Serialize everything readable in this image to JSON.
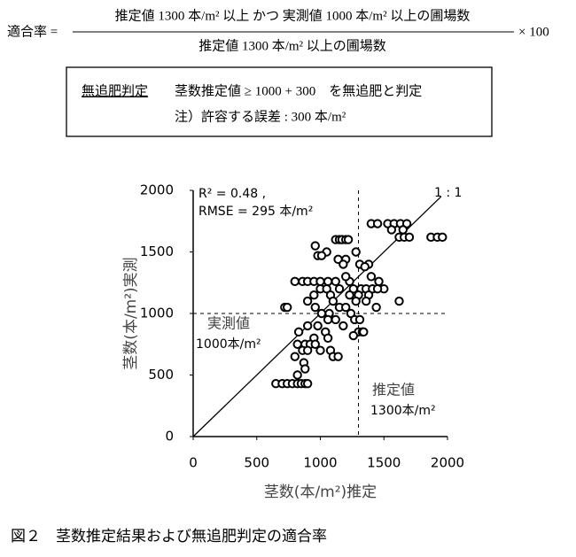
{
  "formula": {
    "lhs": "適合率 =",
    "numerator": "推定値 1300 本/m² 以上 かつ 実測値 1000 本/m² 以上の圃場数",
    "denominator": "推定値 1300 本/m² 以上の圃場数",
    "multiplier": "× 100"
  },
  "criteria": {
    "label": "無追肥判定",
    "rule": "茎数推定値 ≥ 1000 + 300　を無追肥と判定",
    "note": "注）許容する誤差 : 300 本/m²"
  },
  "chart_data": {
    "type": "scatter",
    "x_label": "茎数(本/m²)推定",
    "y_label": "茎数(本/m²)実測",
    "annotations": {
      "r2": "R² = 0.48 ,",
      "rmse": "RMSE = 295 本/m²",
      "identity": "1 : 1",
      "y_threshold_label": "実測値",
      "y_threshold_value": "1000本/m²",
      "x_threshold_label": "推定値",
      "x_threshold_value": "1300本/m²"
    },
    "x_threshold": 1300,
    "y_threshold": 1000,
    "xlim": [
      0,
      2000
    ],
    "ylim": [
      0,
      2000
    ],
    "xticks": [
      0,
      500,
      1000,
      1500,
      2000
    ],
    "yticks": [
      0,
      500,
      1000,
      1500,
      2000
    ],
    "marker_color": "#000000",
    "x": [
      1400,
      1450,
      1530,
      1580,
      1630,
      1680,
      1620,
      1660,
      1700,
      1870,
      1920,
      1960,
      1560,
      1650,
      1120,
      1150,
      1170,
      1200,
      1220,
      960,
      1050,
      1280,
      980,
      1010,
      1200,
      1140,
      1180,
      1380,
      1310,
      1350,
      800,
      860,
      900,
      950,
      1000,
      1060,
      1120,
      1230,
      1460,
      1400,
      1200,
      1000,
      1050,
      1150,
      1260,
      1320,
      1360,
      1500,
      1410,
      1450,
      950,
      1080,
      1230,
      1300,
      1380,
      900,
      1100,
      1280,
      1360,
      1620,
      720,
      740,
      960,
      1150,
      1200,
      1440,
      1010,
      1070,
      1240,
      1060,
      1120,
      1270,
      1310,
      900,
      980,
      1180,
      830,
      1040,
      1300,
      1330,
      1340,
      1260,
      950,
      1060,
      820,
      880,
      920,
      960,
      860,
      900,
      1000,
      1080,
      800,
      1100,
      1140,
      870,
      880,
      820,
      650,
      700,
      740,
      780,
      820,
      850,
      880,
      900
    ],
    "values": [
      1730,
      1730,
      1730,
      1730,
      1730,
      1730,
      1620,
      1620,
      1620,
      1620,
      1620,
      1620,
      1680,
      1680,
      1600,
      1600,
      1600,
      1600,
      1600,
      1550,
      1500,
      1500,
      1470,
      1470,
      1440,
      1440,
      1400,
      1400,
      1400,
      1380,
      1260,
      1260,
      1260,
      1260,
      1260,
      1260,
      1260,
      1260,
      1260,
      1300,
      1300,
      1200,
      1200,
      1200,
      1200,
      1200,
      1200,
      1200,
      1200,
      1200,
      1150,
      1150,
      1150,
      1150,
      1150,
      1100,
      1100,
      1100,
      1100,
      1100,
      1050,
      1050,
      1050,
      1050,
      1050,
      1050,
      1000,
      1000,
      1000,
      950,
      950,
      950,
      950,
      900,
      900,
      900,
      850,
      850,
      850,
      850,
      850,
      820,
      800,
      800,
      750,
      750,
      750,
      750,
      700,
      700,
      700,
      700,
      650,
      650,
      650,
      600,
      550,
      500,
      430,
      430,
      430,
      430,
      430,
      430,
      430,
      430
    ]
  },
  "caption": "図２　茎数推定結果および無追肥判定の適合率"
}
